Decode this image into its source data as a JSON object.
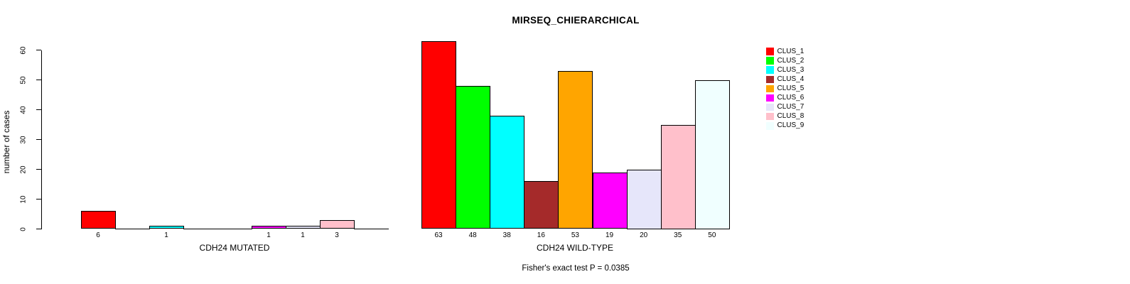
{
  "chart_data": {
    "type": "bar",
    "title": "MIRSEQ_CHIERARCHICAL",
    "ylabel": "number of cases",
    "ylim": [
      0,
      63
    ],
    "y_ticks": [
      0,
      10,
      20,
      30,
      40,
      50,
      60
    ],
    "grid": false,
    "legend_position": "right-outside",
    "categories": [
      "CLUS_1",
      "CLUS_2",
      "CLUS_3",
      "CLUS_4",
      "CLUS_5",
      "CLUS_6",
      "CLUS_7",
      "CLUS_8",
      "CLUS_9"
    ],
    "colors": [
      "#FF0000",
      "#00FF00",
      "#00FFFF",
      "#A52A2A",
      "#FFA500",
      "#FF00FF",
      "#E6E6FA",
      "#FFC0CB",
      "#F0FFFF"
    ],
    "panels": [
      {
        "xlabel": "CDH24 MUTATED",
        "values": [
          6,
          0,
          1,
          0,
          0,
          1,
          1,
          3,
          0
        ],
        "bar_labels": [
          "6",
          "",
          "1",
          "",
          "",
          "1",
          "1",
          "3",
          ""
        ]
      },
      {
        "xlabel": "CDH24 WILD-TYPE",
        "values": [
          63,
          48,
          38,
          16,
          53,
          19,
          20,
          35,
          50
        ],
        "bar_labels": [
          "63",
          "48",
          "38",
          "16",
          "53",
          "19",
          "20",
          "35",
          "50"
        ]
      }
    ],
    "annotation": "Fisher's exact test P = 0.0385"
  },
  "legend": {
    "items": [
      {
        "label": "CLUS_1",
        "color": "#FF0000"
      },
      {
        "label": "CLUS_2",
        "color": "#00FF00"
      },
      {
        "label": "CLUS_3",
        "color": "#00FFFF"
      },
      {
        "label": "CLUS_4",
        "color": "#A52A2A"
      },
      {
        "label": "CLUS_5",
        "color": "#FFA500"
      },
      {
        "label": "CLUS_6",
        "color": "#FF00FF"
      },
      {
        "label": "CLUS_7",
        "color": "#E6E6FA"
      },
      {
        "label": "CLUS_8",
        "color": "#FFC0CB"
      },
      {
        "label": "CLUS_9",
        "color": "#F0FFFF"
      }
    ]
  }
}
